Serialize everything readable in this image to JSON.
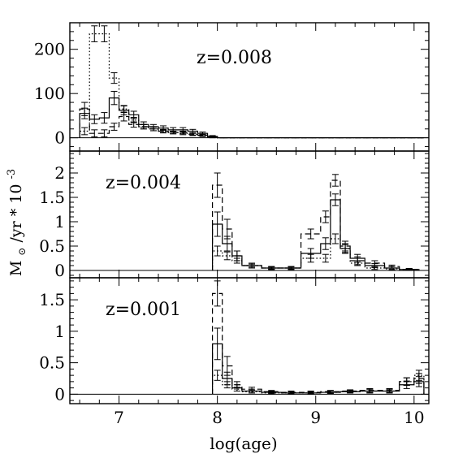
{
  "figure": {
    "xlabel": "log(age)",
    "ylabel": "M⊙/yr * 10-3",
    "ylabel_main": "M",
    "ylabel_sub": "⊙",
    "ylabel_rest": "/yr * 10",
    "ylabel_exp": "-3"
  },
  "chart_data": [
    {
      "type": "line",
      "style": "step",
      "annotation": "z=0.008",
      "xlim": [
        6.5,
        10.15
      ],
      "ylim": [
        -30,
        260
      ],
      "x_ticks": [
        7,
        8,
        9,
        10
      ],
      "x_tick_labels": [
        "7",
        "8",
        "9",
        "10"
      ],
      "y_ticks": [
        0,
        100,
        200
      ],
      "y_tick_labels": [
        "0",
        "100",
        "200"
      ],
      "bin_edges": [
        6.6,
        6.7,
        6.8,
        6.9,
        7.0,
        7.1,
        7.2,
        7.3,
        7.4,
        7.5,
        7.6,
        7.7,
        7.8,
        7.9,
        8.0,
        10.1
      ],
      "series": [
        {
          "linestyle": "solid",
          "values": [
            55,
            42,
            45,
            90,
            62,
            52,
            30,
            25,
            22,
            18,
            18,
            15,
            10,
            3,
            0
          ],
          "errors": [
            12,
            10,
            12,
            15,
            10,
            8,
            6,
            5,
            5,
            5,
            5,
            4,
            3,
            2,
            0
          ]
        },
        {
          "linestyle": "dashed",
          "values": [
            65,
            10,
            10,
            25,
            48,
            30,
            25,
            20,
            15,
            12,
            12,
            8,
            6,
            2,
            0
          ],
          "errors": [
            15,
            8,
            8,
            8,
            10,
            6,
            5,
            4,
            4,
            3,
            3,
            3,
            2,
            2,
            0
          ]
        },
        {
          "linestyle": "dotted",
          "values": [
            15,
            235,
            235,
            135,
            65,
            40,
            25,
            20,
            15,
            12,
            10,
            8,
            5,
            2,
            0
          ],
          "errors": [
            8,
            18,
            18,
            12,
            8,
            6,
            5,
            4,
            3,
            3,
            3,
            2,
            2,
            1,
            0
          ]
        }
      ]
    },
    {
      "type": "line",
      "style": "step",
      "annotation": "z=0.004",
      "xlim": [
        6.5,
        10.15
      ],
      "ylim": [
        -0.15,
        2.45
      ],
      "y_ticks": [
        0,
        0.5,
        1,
        1.5,
        2
      ],
      "y_tick_labels": [
        "0",
        "0.5",
        "1",
        "1.5",
        "2"
      ],
      "bin_edges": [
        7.95,
        8.05,
        8.15,
        8.25,
        8.45,
        8.65,
        8.85,
        9.05,
        9.15,
        9.25,
        9.35,
        9.5,
        9.7,
        9.85,
        10.05
      ],
      "series": [
        {
          "linestyle": "solid",
          "values": [
            0.95,
            0.55,
            0.3,
            0.1,
            0.05,
            0.05,
            0.35,
            0.55,
            1.45,
            0.45,
            0.25,
            0.1,
            0.05,
            0.02
          ],
          "errors": [
            0.25,
            0.15,
            0.1,
            0.05,
            0.03,
            0.03,
            0.1,
            0.12,
            0.12,
            0.1,
            0.08,
            0.04,
            0.03,
            0.02
          ]
        },
        {
          "linestyle": "dashed",
          "values": [
            1.75,
            0.85,
            0.3,
            0.1,
            0.05,
            0.05,
            0.75,
            1.1,
            1.85,
            0.5,
            0.2,
            0.15,
            0.08,
            0.02
          ],
          "errors": [
            0.25,
            0.2,
            0.1,
            0.05,
            0.03,
            0.03,
            0.1,
            0.12,
            0.12,
            0.1,
            0.08,
            0.05,
            0.03,
            0.02
          ]
        },
        {
          "linestyle": "dotted",
          "values": [
            0.4,
            0.3,
            0.2,
            0.1,
            0.05,
            0.05,
            0.25,
            0.25,
            0.65,
            0.45,
            0.15,
            0.05,
            0.03,
            0.02
          ],
          "errors": [
            0.1,
            0.08,
            0.05,
            0.03,
            0.02,
            0.02,
            0.08,
            0.08,
            0.1,
            0.08,
            0.05,
            0.03,
            0.02,
            0.01
          ]
        }
      ]
    },
    {
      "type": "line",
      "style": "step",
      "annotation": "z=0.001",
      "xlim": [
        6.5,
        10.15
      ],
      "ylim": [
        -0.15,
        1.85
      ],
      "y_ticks": [
        0,
        0.5,
        1,
        1.5
      ],
      "y_tick_labels": [
        "0",
        "0.5",
        "1",
        "1.5"
      ],
      "bin_edges": [
        7.95,
        8.05,
        8.15,
        8.25,
        8.45,
        8.65,
        8.85,
        9.05,
        9.25,
        9.45,
        9.65,
        9.85,
        10.0,
        10.1
      ],
      "series": [
        {
          "linestyle": "solid",
          "values": [
            0.8,
            0.25,
            0.1,
            0.05,
            0.03,
            0.02,
            0.02,
            0.03,
            0.04,
            0.05,
            0.05,
            0.15,
            0.2
          ],
          "errors": [
            0.25,
            0.1,
            0.05,
            0.03,
            0.02,
            0.02,
            0.02,
            0.02,
            0.02,
            0.03,
            0.03,
            0.06,
            0.08
          ]
        },
        {
          "linestyle": "dashed",
          "values": [
            1.6,
            0.45,
            0.15,
            0.08,
            0.04,
            0.03,
            0.03,
            0.04,
            0.05,
            0.06,
            0.06,
            0.2,
            0.25
          ],
          "errors": [
            0.2,
            0.15,
            0.05,
            0.03,
            0.02,
            0.02,
            0.02,
            0.02,
            0.02,
            0.03,
            0.03,
            0.06,
            0.08
          ]
        },
        {
          "linestyle": "dotted",
          "values": [
            0.3,
            0.15,
            0.08,
            0.04,
            0.02,
            0.02,
            0.02,
            0.03,
            0.04,
            0.05,
            0.05,
            0.2,
            0.3
          ],
          "errors": [
            0.08,
            0.05,
            0.03,
            0.02,
            0.02,
            0.02,
            0.02,
            0.02,
            0.02,
            0.03,
            0.03,
            0.06,
            0.08
          ]
        }
      ]
    }
  ]
}
